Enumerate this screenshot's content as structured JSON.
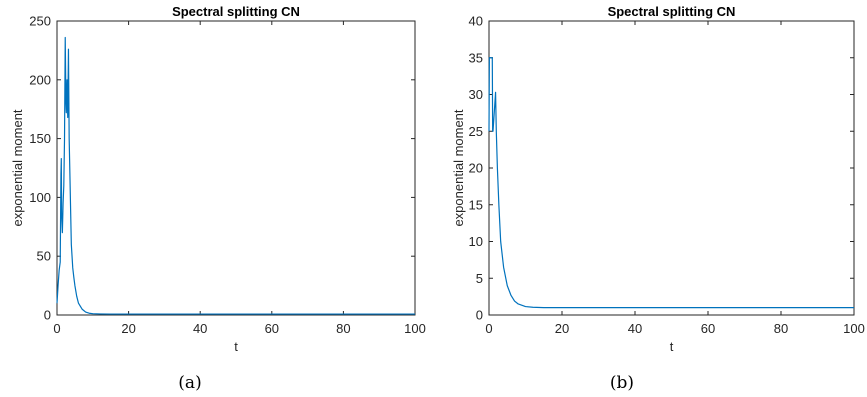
{
  "chart_data": [
    {
      "type": "line",
      "title": "Spectral splitting CN",
      "xlabel": "t",
      "ylabel": "exponential moment",
      "caption": "(a)",
      "xlim": [
        0,
        100
      ],
      "ylim": [
        0,
        250
      ],
      "xticks": [
        0,
        20,
        40,
        60,
        80,
        100
      ],
      "yticks": [
        0,
        50,
        100,
        150,
        200,
        250
      ],
      "grid": false,
      "color": "#0072BD",
      "series": [
        {
          "x": [
            0,
            0.3,
            0.6,
            0.9,
            1.1,
            1.2,
            1.3,
            1.5,
            1.7,
            1.9,
            2.1,
            2.3,
            2.5,
            2.6,
            2.8,
            3.0,
            3.2,
            3.4,
            3.6,
            3.8,
            4.0,
            4.2,
            4.4,
            4.7,
            5.0,
            5.5,
            6,
            7,
            8,
            9,
            10,
            12,
            15,
            20,
            30,
            50,
            100
          ],
          "y": [
            10,
            25,
            38,
            45,
            120,
            133,
            85,
            70,
            95,
            110,
            150,
            236,
            180,
            172,
            200,
            168,
            226,
            150,
            120,
            90,
            60,
            50,
            40,
            32,
            25,
            16,
            10,
            5,
            2.5,
            1.5,
            1.1,
            0.9,
            0.8,
            0.8,
            0.8,
            0.8,
            0.8
          ]
        }
      ]
    },
    {
      "type": "line",
      "title": "Spectral splitting CN",
      "xlabel": "t",
      "ylabel": "exponential moment",
      "caption": "(b)",
      "xlim": [
        0,
        100
      ],
      "ylim": [
        0,
        40
      ],
      "xticks": [
        0,
        20,
        40,
        60,
        80,
        100
      ],
      "yticks": [
        0,
        5,
        10,
        15,
        20,
        25,
        30,
        35,
        40
      ],
      "grid": false,
      "color": "#0072BD",
      "series": [
        {
          "x": [
            0,
            0.1,
            0.2,
            0.9,
            1.0,
            1.1,
            1.5,
            1.8,
            2.0,
            2.3,
            2.7,
            3.2,
            4,
            5,
            6,
            7,
            8,
            10,
            12,
            15,
            20,
            30,
            50,
            100
          ],
          "y": [
            25,
            35,
            35,
            35,
            25,
            25,
            28,
            30.3,
            25,
            20,
            15,
            10,
            6.5,
            4,
            2.7,
            1.9,
            1.5,
            1.15,
            1.05,
            1.0,
            1.0,
            1.0,
            1.0,
            1.0
          ]
        }
      ]
    }
  ]
}
